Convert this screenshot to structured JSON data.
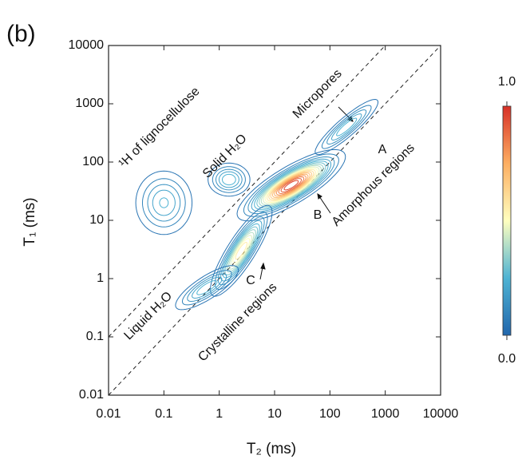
{
  "chart_data": {
    "type": "contour",
    "panel_label": "(b)",
    "x_label": "T₂ (ms)",
    "y_label": "T₁ (ms)",
    "log_x": true,
    "log_y": true,
    "xlim": [
      0.01,
      10000
    ],
    "ylim": [
      0.01,
      10000
    ],
    "xticks": [
      0.01,
      0.1,
      1,
      10,
      100,
      1000,
      10000
    ],
    "yticks": [
      0.01,
      0.1,
      1,
      10,
      100,
      1000,
      10000
    ],
    "contour_step": 0.05,
    "peaks": [
      {
        "t2": 0.1,
        "t1": 20,
        "intensity": 0.26,
        "spread_t2": 0.28,
        "spread_t1": 0.3,
        "correlation": 0
      },
      {
        "t2": 1.5,
        "t1": 50,
        "intensity": 0.3,
        "spread_t2": 0.2,
        "spread_t1": 0.15,
        "correlation": 0
      },
      {
        "t2": 20,
        "t1": 40,
        "intensity": 1.0,
        "spread_t2": 0.4,
        "spread_t1": 0.25,
        "correlation": 0.8
      },
      {
        "t2": 200,
        "t1": 400,
        "intensity": 0.3,
        "spread_t2": 0.3,
        "spread_t1": 0.25,
        "correlation": 0.9
      },
      {
        "t2": 2.5,
        "t1": 3,
        "intensity": 0.6,
        "spread_t2": 0.25,
        "spread_t1": 0.35,
        "correlation": 0.85
      },
      {
        "t2": 0.6,
        "t1": 0.7,
        "intensity": 0.3,
        "spread_t2": 0.3,
        "spread_t1": 0.2,
        "correlation": 0.8
      }
    ],
    "reference_lines": [
      {
        "ratio": 1
      },
      {
        "ratio": 10
      }
    ],
    "colorbar": {
      "lim": [
        0,
        1
      ],
      "ticks": [
        {
          "value": 0,
          "label": "0.0"
        },
        {
          "value": 1,
          "label": "1.0"
        }
      ],
      "colors": [
        "#2166ac",
        "#4eb3d3",
        "#ffffbf",
        "#fdae61",
        "#d73027"
      ]
    },
    "annotations": [
      "¹H of lignocellulose",
      "Solid H₂O",
      "Micropores",
      "A",
      "Amorphous regions",
      "B",
      "C",
      "Crystalline regions",
      "Liquid H₂O"
    ]
  }
}
